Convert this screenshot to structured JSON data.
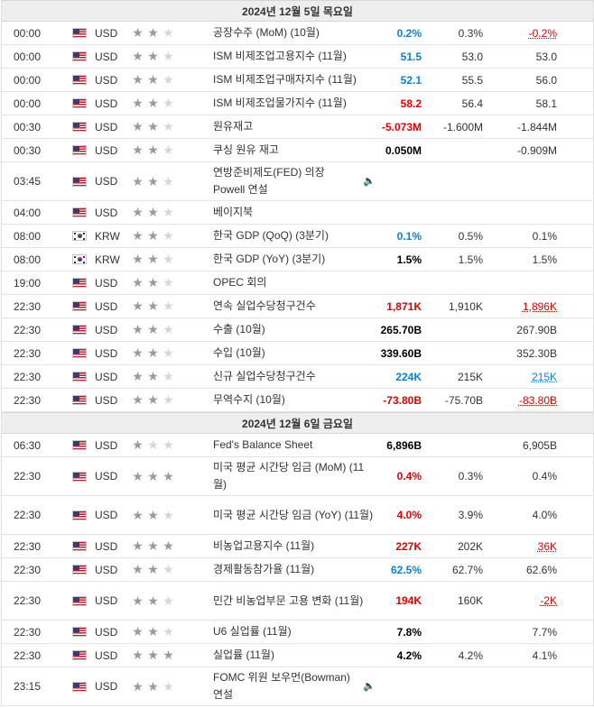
{
  "days": [
    {
      "header": "2024년 12월 5일 목요일",
      "events": [
        {
          "time": "00:00",
          "country": "us",
          "currency": "USD",
          "importance": 2,
          "event": "공장수주 (MoM) (10월)",
          "actual": "0.2%",
          "actual_class": "pos",
          "forecast": "0.3%",
          "previous": "-0.2%",
          "previous_class": "rev-neg",
          "height": 26
        },
        {
          "time": "00:00",
          "country": "us",
          "currency": "USD",
          "importance": 2,
          "event": "ISM 비제조업고용지수 (11월)",
          "actual": "51.5",
          "actual_class": "pos",
          "forecast": "53.0",
          "previous": "53.0",
          "previous_class": "",
          "height": 26
        },
        {
          "time": "00:00",
          "country": "us",
          "currency": "USD",
          "importance": 2,
          "event": "ISM 비제조업구매자지수 (11월)",
          "actual": "52.1",
          "actual_class": "pos",
          "forecast": "55.5",
          "previous": "56.0",
          "previous_class": "",
          "height": 26
        },
        {
          "time": "00:00",
          "country": "us",
          "currency": "USD",
          "importance": 2,
          "event": "ISM 비제조업물가지수 (11월)",
          "actual": "58.2",
          "actual_class": "neg",
          "forecast": "56.4",
          "previous": "58.1",
          "previous_class": "",
          "height": 26
        },
        {
          "time": "00:30",
          "country": "us",
          "currency": "USD",
          "importance": 2,
          "event": "원유재고",
          "actual": "-5.073M",
          "actual_class": "neg",
          "forecast": "-1.600M",
          "previous": "-1.844M",
          "previous_class": "",
          "height": 26
        },
        {
          "time": "00:30",
          "country": "us",
          "currency": "USD",
          "importance": 2,
          "event": "쿠싱 원유 재고",
          "actual": "0.050M",
          "actual_class": "neu",
          "forecast": "",
          "previous": "-0.909M",
          "previous_class": "",
          "height": 26
        },
        {
          "time": "03:45",
          "country": "us",
          "currency": "USD",
          "importance": 2,
          "event": "연방준비제도(FED) 의장 Powell 연설",
          "speech": true,
          "actual": "",
          "actual_class": "",
          "forecast": "",
          "previous": "",
          "previous_class": "",
          "height": 43
        },
        {
          "time": "04:00",
          "country": "us",
          "currency": "USD",
          "importance": 2,
          "event": "베이지북",
          "actual": "",
          "actual_class": "",
          "forecast": "",
          "previous": "",
          "previous_class": "",
          "height": 26
        },
        {
          "time": "08:00",
          "country": "kr",
          "currency": "KRW",
          "importance": 2,
          "event": "한국 GDP (QoQ) (3분기)",
          "actual": "0.1%",
          "actual_class": "pos",
          "forecast": "0.5%",
          "previous": "0.1%",
          "previous_class": "",
          "height": 26
        },
        {
          "time": "08:00",
          "country": "kr",
          "currency": "KRW",
          "importance": 2,
          "event": "한국 GDP (YoY) (3분기)",
          "actual": "1.5%",
          "actual_class": "neu",
          "forecast": "1.5%",
          "previous": "1.5%",
          "previous_class": "",
          "height": 26
        },
        {
          "time": "19:00",
          "country": "us",
          "currency": "USD",
          "importance": 2,
          "event": "OPEC 회의",
          "actual": "",
          "actual_class": "",
          "forecast": "",
          "previous": "",
          "previous_class": "",
          "height": 26
        },
        {
          "time": "22:30",
          "country": "us",
          "currency": "USD",
          "importance": 2,
          "event": "연속 실업수당청구건수",
          "actual": "1,871K",
          "actual_class": "neg",
          "forecast": "1,910K",
          "previous": "1,896K",
          "previous_class": "rev-neg",
          "height": 26
        },
        {
          "time": "22:30",
          "country": "us",
          "currency": "USD",
          "importance": 2,
          "event": "수출 (10월)",
          "actual": "265.70B",
          "actual_class": "neu",
          "forecast": "",
          "previous": "267.90B",
          "previous_class": "",
          "height": 26
        },
        {
          "time": "22:30",
          "country": "us",
          "currency": "USD",
          "importance": 2,
          "event": "수입 (10월)",
          "actual": "339.60B",
          "actual_class": "neu",
          "forecast": "",
          "previous": "352.30B",
          "previous_class": "",
          "height": 26
        },
        {
          "time": "22:30",
          "country": "us",
          "currency": "USD",
          "importance": 2,
          "event": "신규 실업수당청구건수",
          "actual": "224K",
          "actual_class": "pos",
          "forecast": "215K",
          "previous": "215K",
          "previous_class": "rev-pos",
          "height": 26
        },
        {
          "time": "22:30",
          "country": "us",
          "currency": "USD",
          "importance": 2,
          "event": "무역수지 (10월)",
          "actual": "-73.80B",
          "actual_class": "neg",
          "forecast": "-75.70B",
          "previous": "-83.80B",
          "previous_class": "rev-neg",
          "height": 26
        }
      ]
    },
    {
      "header": "2024년 12월 6일 금요일",
      "events": [
        {
          "time": "06:30",
          "country": "us",
          "currency": "USD",
          "importance": 1,
          "event": "Fed's Balance Sheet",
          "actual": "6,896B",
          "actual_class": "neu",
          "forecast": "",
          "previous": "6,905B",
          "previous_class": "",
          "height": 26
        },
        {
          "time": "22:30",
          "country": "us",
          "currency": "USD",
          "importance": 3,
          "event": "미국 평균 시간당 임금 (MoM) (11월)",
          "actual": "0.4%",
          "actual_class": "neg",
          "forecast": "0.3%",
          "previous": "0.4%",
          "previous_class": "",
          "height": 43
        },
        {
          "time": "22:30",
          "country": "us",
          "currency": "USD",
          "importance": 2,
          "event": "미국 평균 시간당 임금 (YoY) (11월)",
          "actual": "4.0%",
          "actual_class": "neg",
          "forecast": "3.9%",
          "previous": "4.0%",
          "previous_class": "",
          "height": 43
        },
        {
          "time": "22:30",
          "country": "us",
          "currency": "USD",
          "importance": 3,
          "event": "비농업고용지수 (11월)",
          "actual": "227K",
          "actual_class": "neg",
          "forecast": "202K",
          "previous": "36K",
          "previous_class": "rev-neg",
          "height": 26
        },
        {
          "time": "22:30",
          "country": "us",
          "currency": "USD",
          "importance": 2,
          "event": "경제활동참가율 (11월)",
          "actual": "62.5%",
          "actual_class": "pos",
          "forecast": "62.7%",
          "previous": "62.6%",
          "previous_class": "",
          "height": 26
        },
        {
          "time": "22:30",
          "country": "us",
          "currency": "USD",
          "importance": 2,
          "event": "민간 비농업부문 고용 변화 (11월)",
          "actual": "194K",
          "actual_class": "neg",
          "forecast": "160K",
          "previous": "-2K",
          "previous_class": "rev-neg",
          "height": 43
        },
        {
          "time": "22:30",
          "country": "us",
          "currency": "USD",
          "importance": 2,
          "event": "U6 실업률 (11월)",
          "actual": "7.8%",
          "actual_class": "neu",
          "forecast": "",
          "previous": "7.7%",
          "previous_class": "",
          "height": 26
        },
        {
          "time": "22:30",
          "country": "us",
          "currency": "USD",
          "importance": 3,
          "event": "실업률 (11월)",
          "actual": "4.2%",
          "actual_class": "neu",
          "forecast": "4.2%",
          "previous": "4.1%",
          "previous_class": "",
          "height": 26
        },
        {
          "time": "23:15",
          "country": "us",
          "currency": "USD",
          "importance": 2,
          "event": "FOMC 위원 보우먼(Bowman) 연설",
          "speech": true,
          "actual": "",
          "actual_class": "",
          "forecast": "",
          "previous": "",
          "previous_class": "",
          "height": 43
        }
      ]
    }
  ]
}
